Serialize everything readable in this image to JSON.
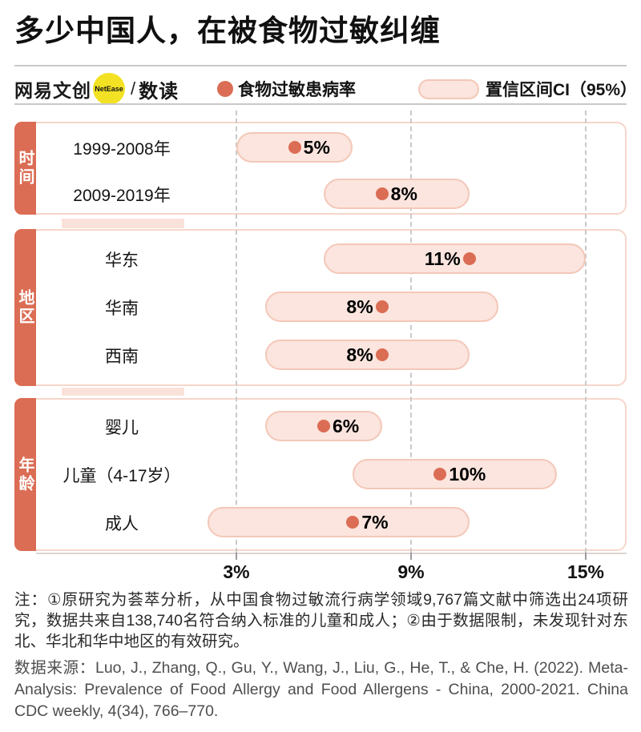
{
  "page": {
    "title": "多少中国人，在被食物过敏纠缠"
  },
  "header": {
    "brand": {
      "name": "网易文创",
      "badge": "NetEase",
      "separator": "/",
      "sub": "数读"
    },
    "legend": [
      {
        "marker": "dot",
        "label": "食物过敏患病率"
      },
      {
        "marker": "pill",
        "label": "置信区间CI（95%）"
      }
    ]
  },
  "chart_data": {
    "type": "scatter",
    "subtype": "dot-with-confidence-interval",
    "title": "多少中国人，在被食物过敏纠缠",
    "unit": "%",
    "x_axis": {
      "ticks": [
        "3%",
        "9%",
        "15%"
      ],
      "tick_values": [
        3,
        9,
        15
      ],
      "range": [
        2,
        15
      ],
      "gridlines": "dashed"
    },
    "legend": [
      "食物过敏患病率",
      "置信区间CI（95%）"
    ],
    "sections": [
      {
        "label": "时间",
        "rows": [
          {
            "category": "1999-2008年",
            "value": 5,
            "ci": [
              3,
              7
            ],
            "value_label": "5%",
            "label_side": "right"
          },
          {
            "category": "2009-2019年",
            "value": 8,
            "ci": [
              6,
              11
            ],
            "value_label": "8%",
            "label_side": "right"
          }
        ]
      },
      {
        "label": "地区",
        "rows": [
          {
            "category": "华东",
            "value": 11,
            "ci": [
              6,
              15
            ],
            "value_label": "11%",
            "label_side": "left"
          },
          {
            "category": "华南",
            "value": 8,
            "ci": [
              4,
              12
            ],
            "value_label": "8%",
            "label_side": "left"
          },
          {
            "category": "西南",
            "value": 8,
            "ci": [
              4,
              11
            ],
            "value_label": "8%",
            "label_side": "left"
          }
        ]
      },
      {
        "label": "年龄",
        "rows": [
          {
            "category": "婴儿",
            "value": 6,
            "ci": [
              4,
              8
            ],
            "value_label": "6%",
            "label_side": "right"
          },
          {
            "category": "儿童（4-17岁）",
            "value": 10,
            "ci": [
              7,
              14
            ],
            "value_label": "10%",
            "label_side": "right"
          },
          {
            "category": "成人",
            "value": 7,
            "ci": [
              2,
              11
            ],
            "value_label": "7%",
            "label_side": "right"
          }
        ]
      }
    ]
  },
  "footnotes": {
    "note": "注：①原研究为荟萃分析，从中国食物过敏流行病学领域9,767篇文献中筛选出24项研究，数据共来自138,740名符合纳入标准的儿童和成人；②由于数据限制，未发现针对东北、华北和华中地区的有效研究。",
    "source": "数据来源：Luo, J., Zhang, Q., Gu, Y., Wang, J., Liu, G., He, T., & Che, H. (2022). Meta-Analysis: Prevalence of Food Allergy and Food Allergens - China, 2000-2021. China CDC weekly, 4(34), 766–770."
  },
  "colors": {
    "accent": "#db6d54",
    "pill_fill": "#fbe5de",
    "pill_border": "#f4c7b8",
    "box_border": "#f6d6cb",
    "badge_yellow": "#f3e224",
    "grid": "#c9c9c9"
  }
}
